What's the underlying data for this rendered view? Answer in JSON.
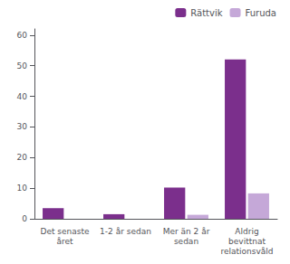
{
  "chart_data": {
    "type": "bar",
    "categories": [
      "Det senaste\nåret",
      "1-2 år sedan",
      "Mer än 2 år\nsedan",
      "Aldrig\nbevittnat\nrelationsvåld"
    ],
    "series": [
      {
        "name": "Rättvik",
        "color": "#7B2F8C",
        "values": [
          3.5,
          1.5,
          10.2,
          52.0
        ]
      },
      {
        "name": "Furuda",
        "color": "#C5A8D8",
        "values": [
          0.0,
          0.0,
          1.3,
          8.3
        ]
      }
    ],
    "ylim": [
      0,
      62
    ],
    "yticks": [
      0,
      10,
      20,
      30,
      40,
      50,
      60
    ],
    "grid": false,
    "legend": "upper right"
  }
}
